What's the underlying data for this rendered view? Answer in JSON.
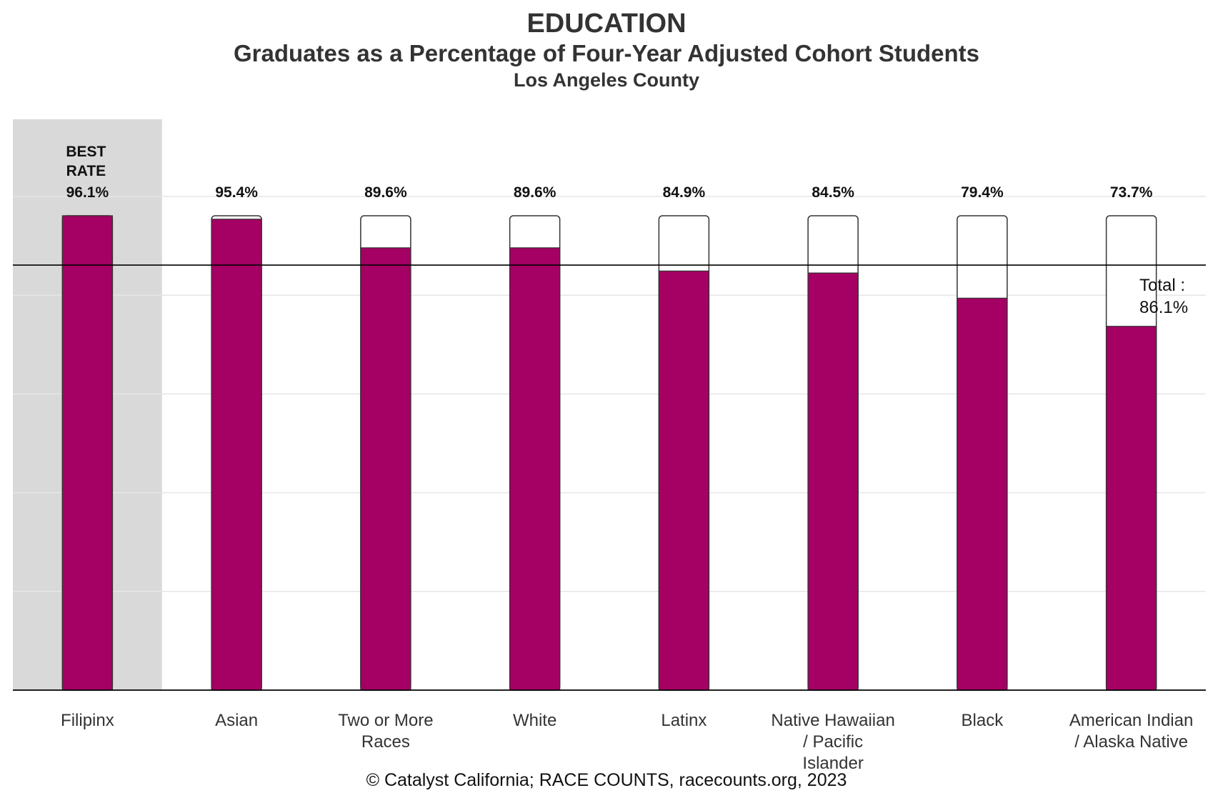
{
  "header": {
    "title": "EDUCATION",
    "subtitle": "Graduates as a Percentage of Four-Year Adjusted Cohort Students",
    "geography": "Los Angeles County"
  },
  "caption": "© Catalyst California; RACE COUNTS, racecounts.org, 2023",
  "colors": {
    "bar_fill": "#A50064",
    "best_band": "#D9D9D9",
    "outline": "#333333",
    "gridline": "#E6E6E6"
  },
  "chart_data": {
    "type": "bar",
    "categories": [
      "Filipinx",
      "Asian",
      "Two or More Races",
      "White",
      "Latinx",
      "Native Hawaiian / Pacific Islander",
      "Black",
      "American Indian / Alaska Native"
    ],
    "category_labels": [
      [
        "Filipinx"
      ],
      [
        "Asian"
      ],
      [
        "Two or More",
        "Races"
      ],
      [
        "White"
      ],
      [
        "Latinx"
      ],
      [
        "Native Hawaiian",
        "/ Pacific",
        "Islander"
      ],
      [
        "Black"
      ],
      [
        "American Indian",
        "/ Alaska Native"
      ]
    ],
    "values": [
      96.1,
      95.4,
      89.6,
      89.6,
      84.9,
      84.5,
      79.4,
      73.7
    ],
    "value_labels": [
      "96.1%",
      "95.4%",
      "89.6%",
      "89.6%",
      "84.9%",
      "84.5%",
      "79.4%",
      "73.7%"
    ],
    "best_rate_label": [
      "BEST",
      "RATE"
    ],
    "best_index": 0,
    "reference_line": {
      "value": 86.1,
      "label_lines": [
        "Total :",
        "86.1%"
      ]
    },
    "outline_max": 96.1,
    "ylim": [
      0,
      100
    ],
    "y_gridlines": [
      20,
      40,
      60,
      80,
      100
    ],
    "grid": true,
    "legend": "none"
  }
}
